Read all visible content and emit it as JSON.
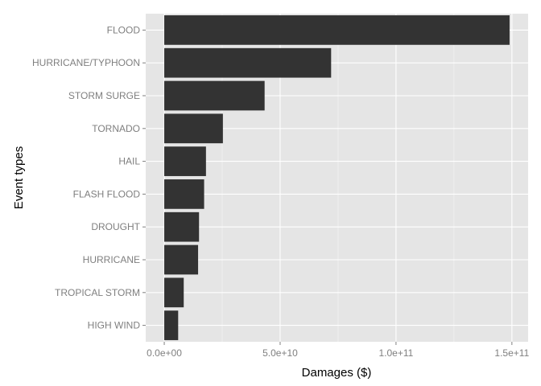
{
  "chart_data": {
    "type": "bar",
    "orientation": "horizontal",
    "categories": [
      "FLOOD",
      "HURRICANE/TYPHOON",
      "STORM SURGE",
      "TORNADO",
      "HAIL",
      "FLASH FLOOD",
      "DROUGHT",
      "HURRICANE",
      "TROPICAL STORM",
      "HIGH WIND"
    ],
    "values": [
      149000000000,
      72000000000,
      43300000000,
      25300000000,
      18000000000,
      17200000000,
      15000000000,
      14600000000,
      8400000000,
      6000000000
    ],
    "xlabel": "Damages ($)",
    "ylabel": "Event types",
    "xlim": [
      -8000000000,
      157000000000
    ],
    "xticks": [
      0,
      50000000000,
      100000000000,
      150000000000
    ],
    "xtick_labels": [
      "0.0e+00",
      "5.0e+10",
      "1.0e+11",
      "1.5e+11"
    ],
    "grid": true,
    "colors": {
      "bar": "#333333",
      "panel": "#e5e5e5",
      "grid_major": "#ffffff",
      "grid_minor": "#f2f2f2",
      "tick_text": "#7f7f7f"
    }
  }
}
